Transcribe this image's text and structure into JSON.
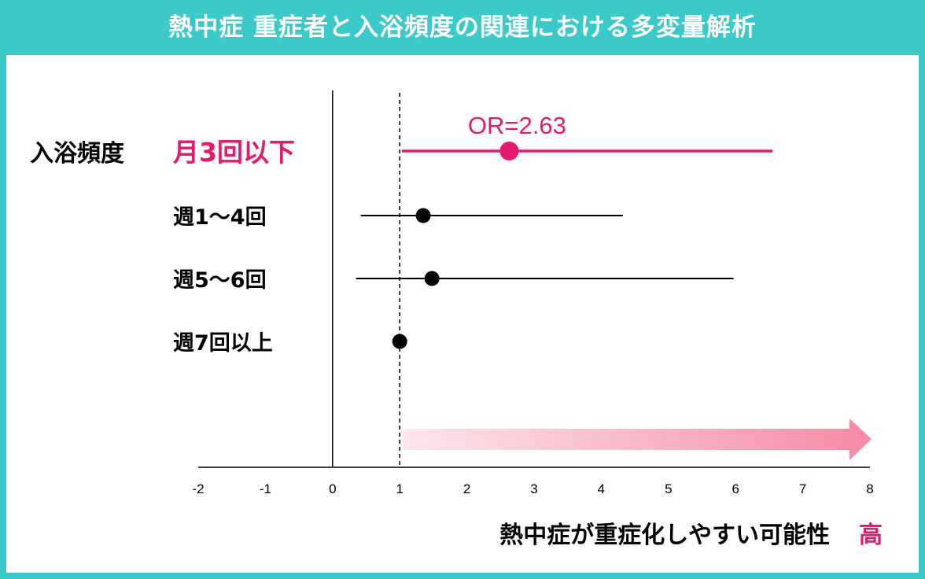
{
  "title": "熱中症 重症者と入浴頻度の関連における多変量解析",
  "colors": {
    "background": "#3cc9c9",
    "accent": "#e5196e",
    "mark": "#000000",
    "arrow": "#f58aa4"
  },
  "chart_data": {
    "type": "forest",
    "group_label": "入浴頻度",
    "categories": [
      "月3回以下",
      "週1～4回",
      "週5～6回",
      "週7回以上"
    ],
    "estimates": [
      2.63,
      1.35,
      1.48,
      1.0
    ],
    "ci_lower": [
      1.03,
      0.42,
      0.35,
      1.0
    ],
    "ci_upper": [
      6.55,
      4.32,
      5.97,
      1.0
    ],
    "highlight_index": 0,
    "highlight_annotation": "OR=2.63",
    "reference_line": 1,
    "xlim": [
      -2,
      8
    ],
    "xticks": [
      "-2",
      "-1",
      "0",
      "1",
      "2",
      "3",
      "4",
      "5",
      "6",
      "7",
      "8"
    ],
    "xlabel": "熱中症が重症化しやすい可能性",
    "xlabel_emphasis": "高"
  }
}
